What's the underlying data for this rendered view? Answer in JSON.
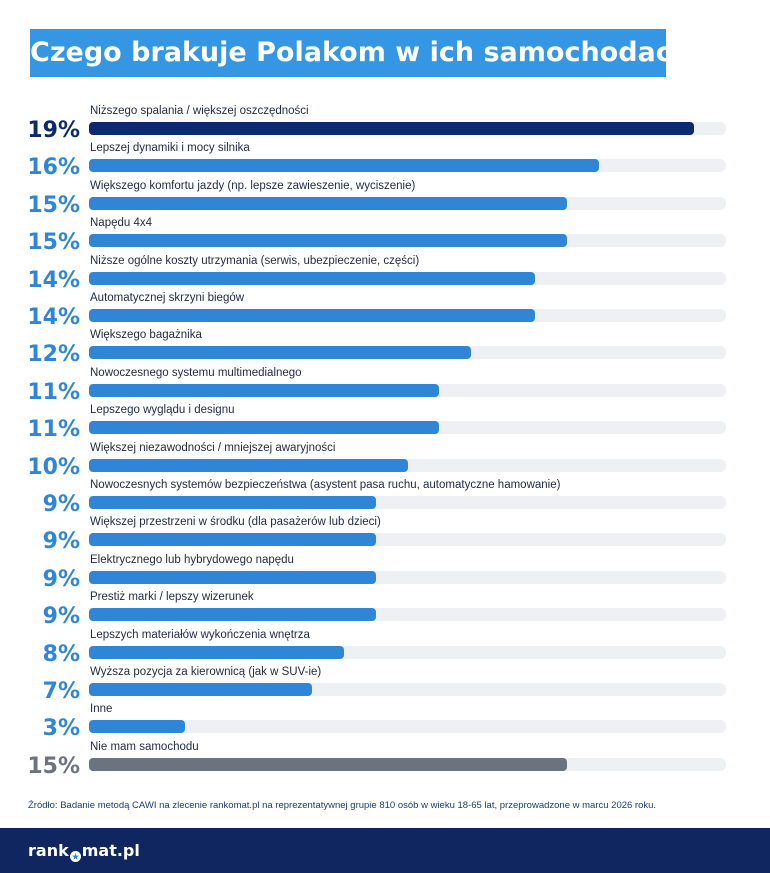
{
  "chart_data": {
    "type": "bar",
    "orientation": "horizontal",
    "title": "Czego brakuje Polakom w ich samochodach?",
    "xlim": [
      0,
      20
    ],
    "items": [
      {
        "pct_label": "19%",
        "value": 19,
        "label": "Niższego spalania / większej oszczędności",
        "color": "#0b2a6f"
      },
      {
        "pct_label": "16%",
        "value": 16,
        "label": "Lepszej dynamiki i mocy silnika",
        "color": "#2f86d6"
      },
      {
        "pct_label": "15%",
        "value": 15,
        "label": "Większego komfortu jazdy (np. lepsze zawieszenie, wyciszenie)",
        "color": "#2f86d6"
      },
      {
        "pct_label": "15%",
        "value": 15,
        "label": "Napędu 4x4",
        "color": "#2f86d6"
      },
      {
        "pct_label": "14%",
        "value": 14,
        "label": "Niższe ogólne koszty utrzymania (serwis, ubezpieczenie, części)",
        "color": "#2f86d6"
      },
      {
        "pct_label": "14%",
        "value": 14,
        "label": "Automatycznej skrzyni biegów",
        "color": "#2f86d6"
      },
      {
        "pct_label": "12%",
        "value": 12,
        "label": "Większego bagażnika",
        "color": "#2f86d6"
      },
      {
        "pct_label": "11%",
        "value": 11,
        "label": "Nowoczesnego systemu multimedialnego",
        "color": "#2f86d6"
      },
      {
        "pct_label": "11%",
        "value": 11,
        "label": "Lepszego wyglądu i designu",
        "color": "#2f86d6"
      },
      {
        "pct_label": "10%",
        "value": 10,
        "label": "Większej niezawodności / mniejszej awaryjności",
        "color": "#2f86d6"
      },
      {
        "pct_label": "9%",
        "value": 9,
        "label": "Nowoczesnych systemów bezpieczeństwa (asystent pasa ruchu, automatyczne hamowanie)",
        "color": "#2f86d6"
      },
      {
        "pct_label": "9%",
        "value": 9,
        "label": "Większej przestrzeni w środku (dla pasażerów lub dzieci)",
        "color": "#2f86d6"
      },
      {
        "pct_label": "9%",
        "value": 9,
        "label": "Elektrycznego lub hybrydowego napędu",
        "color": "#2f86d6"
      },
      {
        "pct_label": "9%",
        "value": 9,
        "label": "Prestiż marki / lepszy wizerunek",
        "color": "#2f86d6"
      },
      {
        "pct_label": "8%",
        "value": 8,
        "label": "Lepszych materiałów wykończenia wnętrza",
        "color": "#2f86d6"
      },
      {
        "pct_label": "7%",
        "value": 7,
        "label": "Wyższa pozycja za kierownicą (jak w SUV-ie)",
        "color": "#2f86d6"
      },
      {
        "pct_label": "3%",
        "value": 3,
        "label": "Inne",
        "color": "#2f86d6"
      },
      {
        "pct_label": "15%",
        "value": 15,
        "label": "Nie mam samochodu",
        "color": "#6b7280"
      }
    ],
    "source": "Źródło: Badanie metodą CAWI na zlecenie rankomat.pl na reprezentatywnej grupie 810 osób w wieku 18-65 lat, przeprowadzone w marcu 2026 roku.",
    "track_color": "#eef0f3",
    "pct_color_default": "#2f86d6",
    "pct_color_last": "#6b7280"
  },
  "footer": {
    "logo_left": "rank",
    "logo_right": "mat.pl",
    "logo_mark": "o-with-star-icon"
  }
}
